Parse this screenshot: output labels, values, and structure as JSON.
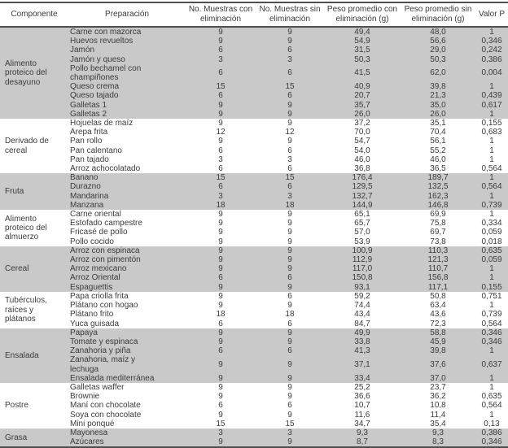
{
  "colors": {
    "shaded_row_bg": "#c9c9c9",
    "border": "#4f4f4f",
    "text": "#3b3b3b"
  },
  "table": {
    "headers": [
      "Componente",
      "Preparación",
      "No. Muestras con eliminación",
      "No. Muestras sin eliminación",
      "Peso promedio con eliminación (g)",
      "Peso promedio sin eliminación (g)",
      "Valor P"
    ],
    "groups": [
      {
        "component": "Alimento proteico del desayuno",
        "shaded": true,
        "rows": [
          {
            "preparacion": "Carne con mazorca",
            "muestras_con": "9",
            "muestras_sin": "9",
            "peso_con": "49,4",
            "peso_sin": "48,0",
            "valor_p": "1"
          },
          {
            "preparacion": "Huevos revueltos",
            "muestras_con": "9",
            "muestras_sin": "9",
            "peso_con": "54,9",
            "peso_sin": "56,6",
            "valor_p": "0,346"
          },
          {
            "preparacion": "Jamón",
            "muestras_con": "6",
            "muestras_sin": "6",
            "peso_con": "31,5",
            "peso_sin": "29,0",
            "valor_p": "0,242"
          },
          {
            "preparacion": "Jamón y queso",
            "muestras_con": "3",
            "muestras_sin": "3",
            "peso_con": "50,3",
            "peso_sin": "50,3",
            "valor_p": "0,386"
          },
          {
            "preparacion": "Pollo bechamel con champiñones",
            "muestras_con": "6",
            "muestras_sin": "6",
            "peso_con": "41,5",
            "peso_sin": "62,0",
            "valor_p": "0,004"
          },
          {
            "preparacion": "Queso crema",
            "muestras_con": "15",
            "muestras_sin": "15",
            "peso_con": "40,9",
            "peso_sin": "39,8",
            "valor_p": "1"
          },
          {
            "preparacion": "Queso tajado",
            "muestras_con": "6",
            "muestras_sin": "6",
            "peso_con": "20,7",
            "peso_sin": "21,3",
            "valor_p": "0,439"
          },
          {
            "preparacion": "Galletas 1",
            "muestras_con": "9",
            "muestras_sin": "9",
            "peso_con": "35,7",
            "peso_sin": "35,0",
            "valor_p": "0,617"
          },
          {
            "preparacion": "Galletas 2",
            "muestras_con": "9",
            "muestras_sin": "9",
            "peso_con": "26,0",
            "peso_sin": "26,0",
            "valor_p": "1"
          }
        ]
      },
      {
        "component": "Derivado de cereal",
        "shaded": false,
        "rows": [
          {
            "preparacion": "Hojuelas de maíz",
            "muestras_con": "9",
            "muestras_sin": "9",
            "peso_con": "37,2",
            "peso_sin": "35,1",
            "valor_p": "0,155"
          },
          {
            "preparacion": "Arepa frita",
            "muestras_con": "12",
            "muestras_sin": "12",
            "peso_con": "70,0",
            "peso_sin": "70,4",
            "valor_p": "0,683"
          },
          {
            "preparacion": "Pan rollo",
            "muestras_con": "9",
            "muestras_sin": "9",
            "peso_con": "54,7",
            "peso_sin": "56,1",
            "valor_p": "1"
          },
          {
            "preparacion": "Pan calentano",
            "muestras_con": "6",
            "muestras_sin": "6",
            "peso_con": "54,0",
            "peso_sin": "55,2",
            "valor_p": "1"
          },
          {
            "preparacion": "Pan tajado",
            "muestras_con": "3",
            "muestras_sin": "3",
            "peso_con": "46,0",
            "peso_sin": "46,0",
            "valor_p": "1"
          },
          {
            "preparacion": "Arroz achocolatado",
            "muestras_con": "6",
            "muestras_sin": "6",
            "peso_con": "36,8",
            "peso_sin": "36,5",
            "valor_p": "0,564"
          }
        ]
      },
      {
        "component": "Fruta",
        "shaded": true,
        "rows": [
          {
            "preparacion": "Banano",
            "muestras_con": "15",
            "muestras_sin": "15",
            "peso_con": "176,4",
            "peso_sin": "189,7",
            "valor_p": "1"
          },
          {
            "preparacion": "Durazno",
            "muestras_con": "6",
            "muestras_sin": "6",
            "peso_con": "129,5",
            "peso_sin": "132,5",
            "valor_p": "0,564"
          },
          {
            "preparacion": "Mandarina",
            "muestras_con": "3",
            "muestras_sin": "3",
            "peso_con": "132,7",
            "peso_sin": "162,3",
            "valor_p": "1"
          },
          {
            "preparacion": "Manzana",
            "muestras_con": "18",
            "muestras_sin": "18",
            "peso_con": "144,9",
            "peso_sin": "146,8",
            "valor_p": "0,739"
          }
        ]
      },
      {
        "component": "Alimento proteico del almuerzo",
        "shaded": false,
        "rows": [
          {
            "preparacion": "Carne oriental",
            "muestras_con": "9",
            "muestras_sin": "9",
            "peso_con": "65,1",
            "peso_sin": "69,9",
            "valor_p": "1"
          },
          {
            "preparacion": "Estofado campestre",
            "muestras_con": "9",
            "muestras_sin": "9",
            "peso_con": "65,7",
            "peso_sin": "75,8",
            "valor_p": "0,334"
          },
          {
            "preparacion": "Fricasé de pollo",
            "muestras_con": "9",
            "muestras_sin": "9",
            "peso_con": "57,0",
            "peso_sin": "69,7",
            "valor_p": "0,059"
          },
          {
            "preparacion": "Pollo cocido",
            "muestras_con": "9",
            "muestras_sin": "9",
            "peso_con": "53,9",
            "peso_sin": "73,8",
            "valor_p": "0,018"
          }
        ]
      },
      {
        "component": "Cereal",
        "shaded": true,
        "rows": [
          {
            "preparacion": "Arroz con espinaca",
            "muestras_con": "9",
            "muestras_sin": "9",
            "peso_con": "100,9",
            "peso_sin": "110,3",
            "valor_p": "0,635"
          },
          {
            "preparacion": "Arroz con pimentón",
            "muestras_con": "9",
            "muestras_sin": "9",
            "peso_con": "112,9",
            "peso_sin": "121,3",
            "valor_p": "0,059"
          },
          {
            "preparacion": "Arroz mexicano",
            "muestras_con": "9",
            "muestras_sin": "9",
            "peso_con": "117,0",
            "peso_sin": "110,7",
            "valor_p": "1"
          },
          {
            "preparacion": "Arroz Oriental",
            "muestras_con": "6",
            "muestras_sin": "6",
            "peso_con": "150,8",
            "peso_sin": "156,8",
            "valor_p": "1"
          },
          {
            "preparacion": "Espaguettis",
            "muestras_con": "9",
            "muestras_sin": "9",
            "peso_con": "93,1",
            "peso_sin": "117,1",
            "valor_p": "0,155"
          }
        ]
      },
      {
        "component": "Tubérculos, raíces y plátanos",
        "shaded": false,
        "rows": [
          {
            "preparacion": "Papa criolla frita",
            "muestras_con": "9",
            "muestras_sin": "6",
            "peso_con": "59,2",
            "peso_sin": "50,8",
            "valor_p": "0,751"
          },
          {
            "preparacion": "Plátano con hogao",
            "muestras_con": "9",
            "muestras_sin": "9",
            "peso_con": "74,4",
            "peso_sin": "63,4",
            "valor_p": "1"
          },
          {
            "preparacion": "Plátano frito",
            "muestras_con": "18",
            "muestras_sin": "18",
            "peso_con": "43,4",
            "peso_sin": "43,6",
            "valor_p": "0,739"
          },
          {
            "preparacion": "Yuca guisada",
            "muestras_con": "6",
            "muestras_sin": "6",
            "peso_con": "84,7",
            "peso_sin": "72,3",
            "valor_p": "0,564"
          }
        ]
      },
      {
        "component": "Ensalada",
        "shaded": true,
        "rows": [
          {
            "preparacion": "Papaya",
            "muestras_con": "9",
            "muestras_sin": "9",
            "peso_con": "49,9",
            "peso_sin": "58,8",
            "valor_p": "0,346"
          },
          {
            "preparacion": "Tomate y espinaca",
            "muestras_con": "9",
            "muestras_sin": "9",
            "peso_con": "33,8",
            "peso_sin": "45,9",
            "valor_p": "0,346"
          },
          {
            "preparacion": "Zanahoria y piña",
            "muestras_con": "6",
            "muestras_sin": "6",
            "peso_con": "41,3",
            "peso_sin": "39,8",
            "valor_p": "1"
          },
          {
            "preparacion": "Zanahoria, maíz y lechuga",
            "muestras_con": "9",
            "muestras_sin": "9",
            "peso_con": "37,1",
            "peso_sin": "37,6",
            "valor_p": "0,637"
          },
          {
            "preparacion": "Ensalada mediterránea",
            "muestras_con": "9",
            "muestras_sin": "9",
            "peso_con": "33,4",
            "peso_sin": "37,0",
            "valor_p": "1"
          }
        ]
      },
      {
        "component": "Postre",
        "shaded": false,
        "rows": [
          {
            "preparacion": "Galletas waffer",
            "muestras_con": "9",
            "muestras_sin": "9",
            "peso_con": "25,2",
            "peso_sin": "23,7",
            "valor_p": "1"
          },
          {
            "preparacion": "Brownie",
            "muestras_con": "9",
            "muestras_sin": "9",
            "peso_con": "36,6",
            "peso_sin": "36,2",
            "valor_p": "0,635"
          },
          {
            "preparacion": "Maní con chocolate",
            "muestras_con": "6",
            "muestras_sin": "6",
            "peso_con": "10,7",
            "peso_sin": "10,8",
            "valor_p": "0,564"
          },
          {
            "preparacion": "Soya con chocolate",
            "muestras_con": "9",
            "muestras_sin": "9",
            "peso_con": "11,6",
            "peso_sin": "11,4",
            "valor_p": "1"
          },
          {
            "preparacion": "Mini ponqué",
            "muestras_con": "15",
            "muestras_sin": "15",
            "peso_con": "34,7",
            "peso_sin": "35,4",
            "valor_p": "0,13"
          }
        ]
      },
      {
        "component": "Grasa",
        "shaded": true,
        "rows": [
          {
            "preparacion": "Mayonesa",
            "muestras_con": "3",
            "muestras_sin": "3",
            "peso_con": "9,3",
            "peso_sin": "9,3",
            "valor_p": "0,386"
          },
          {
            "preparacion": "Azúcares",
            "muestras_con": "9",
            "muestras_sin": "9",
            "peso_con": "8,7",
            "peso_sin": "8,3",
            "valor_p": "0,346"
          }
        ]
      }
    ]
  }
}
